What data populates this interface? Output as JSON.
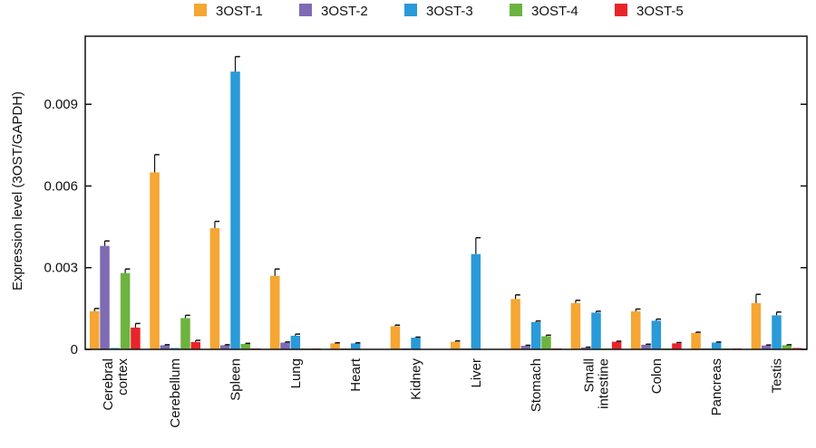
{
  "chart_data": {
    "type": "bar",
    "ylabel": "Expression level (3OST/GAPDH)",
    "ylim": [
      0,
      0.0115
    ],
    "yticks": [
      0,
      0.003,
      0.006,
      0.009
    ],
    "ytick_labels": [
      "0",
      "0.003",
      "0.006",
      "0.009"
    ],
    "legend_placement": "top",
    "grid": false,
    "categories": [
      [
        "Cerebral",
        "cortex"
      ],
      [
        "Cerebellum"
      ],
      [
        "Spleen"
      ],
      [
        "Lung"
      ],
      [
        "Heart"
      ],
      [
        "Kidney"
      ],
      [
        "Liver"
      ],
      [
        "Stomach"
      ],
      [
        "Small",
        "intestine"
      ],
      [
        "Colon"
      ],
      [
        "Pancreas"
      ],
      [
        "Testis"
      ]
    ],
    "series": [
      {
        "name": "3OST-1",
        "color": "#F5A633",
        "values": [
          0.0014,
          0.0065,
          0.00445,
          0.0027,
          0.00022,
          0.00085,
          0.00028,
          0.00185,
          0.0017,
          0.0014,
          0.0006,
          0.0017
        ],
        "errors": [
          0.0001,
          0.00065,
          0.00025,
          0.00025,
          2e-05,
          4e-05,
          3e-05,
          0.00015,
          0.0001,
          8e-05,
          3e-05,
          0.00032
        ]
      },
      {
        "name": "3OST-2",
        "color": "#7E6BB4",
        "values": [
          0.0038,
          0.00015,
          0.00015,
          0.00025,
          2e-05,
          2e-05,
          2e-05,
          0.00013,
          7e-05,
          0.00017,
          3e-05,
          0.00014
        ],
        "errors": [
          0.00018,
          2e-05,
          2e-05,
          2e-05,
          0.0,
          0.0,
          0.0,
          2e-05,
          1e-05,
          2e-05,
          0.0,
          2e-05
        ]
      },
      {
        "name": "3OST-3",
        "color": "#2A9AD8",
        "values": [
          5e-05,
          5e-05,
          0.0102,
          0.0005,
          0.00022,
          0.00043,
          0.0035,
          0.001,
          0.00135,
          0.00105,
          0.00025,
          0.00125
        ],
        "errors": [
          0.0,
          0.0,
          0.00055,
          6e-05,
          2e-05,
          2e-05,
          0.0006,
          4e-05,
          5e-05,
          6e-05,
          2e-05,
          0.00012
        ]
      },
      {
        "name": "3OST-4",
        "color": "#6DB33F",
        "values": [
          0.0028,
          0.00115,
          0.0002,
          2e-05,
          0.0,
          0.0,
          0.0,
          0.00048,
          2e-05,
          2e-05,
          2e-05,
          0.00015
        ],
        "errors": [
          0.00015,
          0.0001,
          2e-05,
          0.0,
          0.0,
          0.0,
          0.0,
          4e-05,
          0.0,
          0.0,
          0.0,
          2e-05
        ]
      },
      {
        "name": "3OST-5",
        "color": "#E8242A",
        "values": [
          0.0008,
          0.00027,
          2e-05,
          2e-05,
          0.0,
          0.0,
          0.0,
          2e-05,
          0.00028,
          0.00022,
          3e-05,
          5e-05
        ],
        "errors": [
          0.00015,
          6e-05,
          0.0,
          0.0,
          0.0,
          0.0,
          0.0,
          0.0,
          2e-05,
          3e-05,
          0.0,
          0.0
        ]
      }
    ]
  }
}
